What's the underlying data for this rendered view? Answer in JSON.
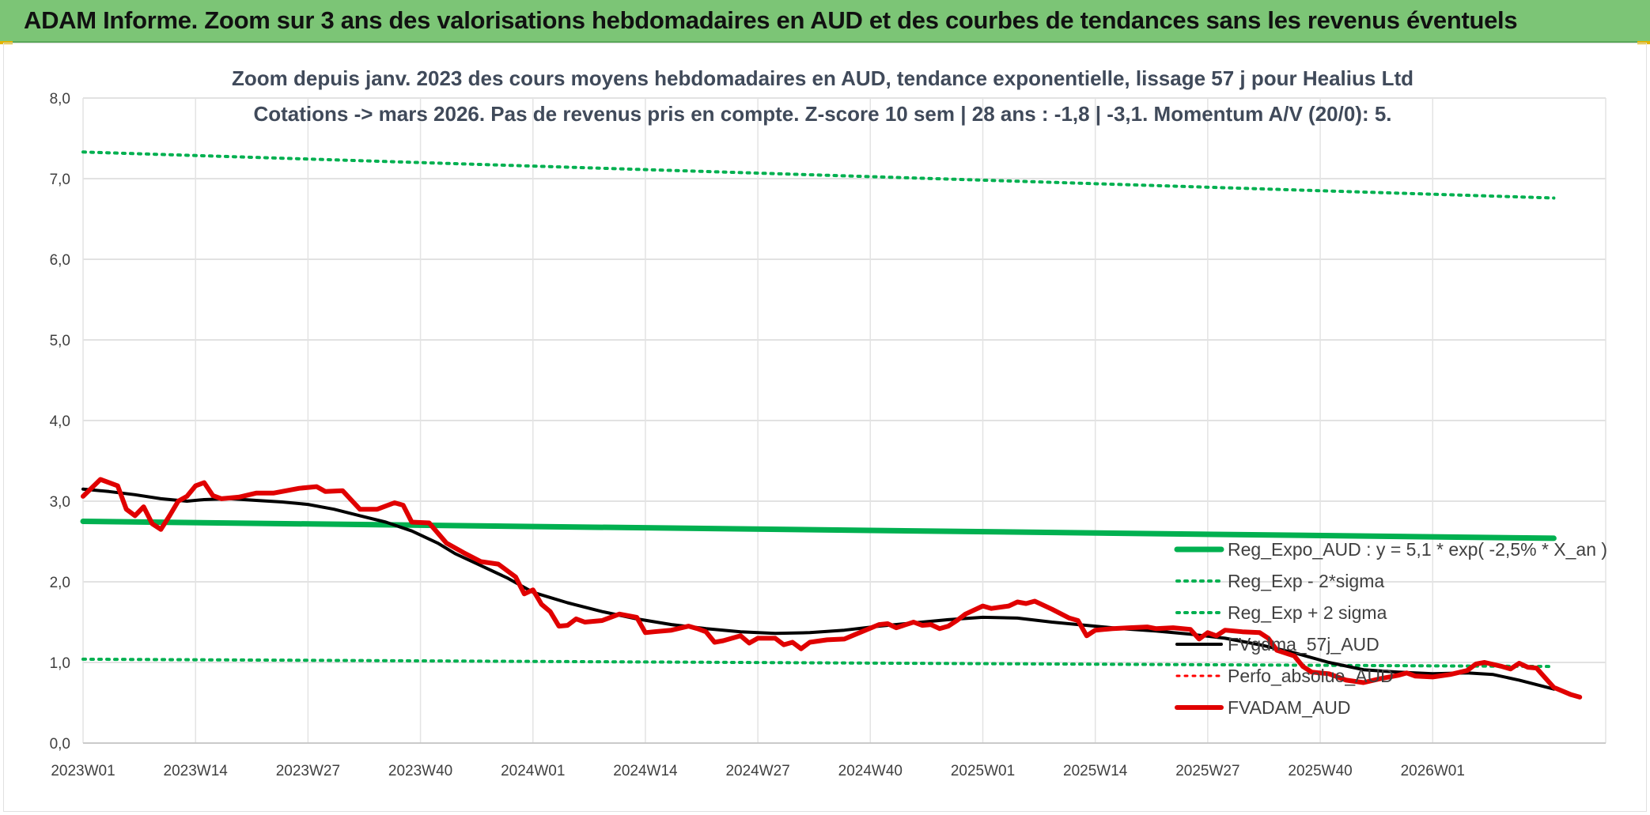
{
  "header": {
    "title": "ADAM Informe. Zoom sur 3 ans des valorisations hebdomadaires en AUD et des courbes de tendances sans les revenus éventuels"
  },
  "chart_data": {
    "type": "line",
    "title": "Zoom depuis janv. 2023 des cours moyens hebdomadaires en AUD, tendance exponentielle, lissage 57 j pour Healius Ltd",
    "subtitle": "Cotations -> mars 2026. Pas de revenus pris en compte. Z-score 10 sem | 28 ans : -1,8 | -3,1. Momentum A/V (20/0): 5.",
    "xlabel": "",
    "ylabel": "",
    "ylim": [
      0,
      8
    ],
    "yticks": [
      "0,0",
      "1,0",
      "2,0",
      "3,0",
      "4,0",
      "5,0",
      "6,0",
      "7,0",
      "8,0"
    ],
    "xticks": [
      "2023W01",
      "2023W14",
      "2023W27",
      "2023W40",
      "2024W01",
      "2024W14",
      "2024W27",
      "2024W40",
      "2025W01",
      "2025W14",
      "2025W27",
      "2025W40",
      "2026W01"
    ],
    "x_range_weeks": [
      0,
      170
    ],
    "grid": true,
    "legend_position": "bottom-right",
    "series": [
      {
        "name": "Reg_Expo_AUD : y = 5,1 * exp( -2,5% *  X_an )",
        "color": "#00b050",
        "style": "solid",
        "width": 7,
        "points": [
          [
            0,
            2.75
          ],
          [
            170,
            2.54
          ]
        ]
      },
      {
        "name": "Reg_Exp - 2*sigma",
        "color": "#00b050",
        "style": "dotted",
        "width": 4,
        "points": [
          [
            0,
            1.04
          ],
          [
            170,
            0.95
          ]
        ]
      },
      {
        "name": "Reg_Exp + 2 sigma",
        "color": "#00b050",
        "style": "dotted",
        "width": 4,
        "points": [
          [
            0,
            7.33
          ],
          [
            170,
            6.76
          ]
        ]
      },
      {
        "name": "FVgdma_57j_AUD",
        "color": "#000000",
        "style": "solid",
        "width": 4,
        "points": [
          [
            0,
            3.15
          ],
          [
            3,
            3.12
          ],
          [
            6,
            3.08
          ],
          [
            9,
            3.03
          ],
          [
            12,
            3.0
          ],
          [
            14,
            3.02
          ],
          [
            17,
            3.03
          ],
          [
            20,
            3.01
          ],
          [
            23,
            2.99
          ],
          [
            26,
            2.96
          ],
          [
            29,
            2.9
          ],
          [
            32,
            2.82
          ],
          [
            35,
            2.74
          ],
          [
            38,
            2.63
          ],
          [
            41,
            2.48
          ],
          [
            43,
            2.35
          ],
          [
            46,
            2.2
          ],
          [
            49,
            2.05
          ],
          [
            52,
            1.87
          ],
          [
            56,
            1.74
          ],
          [
            60,
            1.63
          ],
          [
            64,
            1.54
          ],
          [
            68,
            1.47
          ],
          [
            72,
            1.42
          ],
          [
            76,
            1.38
          ],
          [
            80,
            1.36
          ],
          [
            84,
            1.37
          ],
          [
            88,
            1.4
          ],
          [
            92,
            1.45
          ],
          [
            96,
            1.49
          ],
          [
            100,
            1.53
          ],
          [
            104,
            1.56
          ],
          [
            108,
            1.55
          ],
          [
            112,
            1.5
          ],
          [
            116,
            1.46
          ],
          [
            120,
            1.42
          ],
          [
            124,
            1.39
          ],
          [
            128,
            1.35
          ],
          [
            132,
            1.3
          ],
          [
            136,
            1.22
          ],
          [
            140,
            1.12
          ],
          [
            144,
            1.0
          ],
          [
            148,
            0.91
          ],
          [
            152,
            0.88
          ],
          [
            156,
            0.86
          ],
          [
            160,
            0.87
          ],
          [
            163,
            0.85
          ],
          [
            166,
            0.78
          ],
          [
            170,
            0.67
          ]
        ]
      },
      {
        "name": "Perfo_absolue_AUD",
        "color": "#ff0000",
        "style": "dotted",
        "width": 3,
        "points": []
      },
      {
        "name": "FVADAM_AUD",
        "color": "#e00000",
        "style": "solid",
        "width": 6,
        "points": [
          [
            0,
            3.06
          ],
          [
            2,
            3.27
          ],
          [
            4,
            3.19
          ],
          [
            5,
            2.9
          ],
          [
            6,
            2.82
          ],
          [
            7,
            2.93
          ],
          [
            8,
            2.72
          ],
          [
            9,
            2.65
          ],
          [
            10,
            2.82
          ],
          [
            11,
            3.0
          ],
          [
            12,
            3.06
          ],
          [
            13,
            3.19
          ],
          [
            14,
            3.23
          ],
          [
            15,
            3.07
          ],
          [
            16,
            3.03
          ],
          [
            18,
            3.05
          ],
          [
            20,
            3.1
          ],
          [
            22,
            3.1
          ],
          [
            25,
            3.16
          ],
          [
            27,
            3.18
          ],
          [
            28,
            3.12
          ],
          [
            30,
            3.13
          ],
          [
            32,
            2.9
          ],
          [
            34,
            2.9
          ],
          [
            36,
            2.98
          ],
          [
            37,
            2.95
          ],
          [
            38,
            2.74
          ],
          [
            40,
            2.73
          ],
          [
            42,
            2.48
          ],
          [
            44,
            2.36
          ],
          [
            46,
            2.25
          ],
          [
            48,
            2.22
          ],
          [
            50,
            2.06
          ],
          [
            51,
            1.85
          ],
          [
            52,
            1.9
          ],
          [
            53,
            1.72
          ],
          [
            54,
            1.63
          ],
          [
            55,
            1.45
          ],
          [
            56,
            1.46
          ],
          [
            57,
            1.54
          ],
          [
            58,
            1.5
          ],
          [
            60,
            1.52
          ],
          [
            62,
            1.6
          ],
          [
            64,
            1.56
          ],
          [
            65,
            1.37
          ],
          [
            66,
            1.38
          ],
          [
            68,
            1.4
          ],
          [
            70,
            1.45
          ],
          [
            71,
            1.42
          ],
          [
            72,
            1.38
          ],
          [
            73,
            1.25
          ],
          [
            74,
            1.27
          ],
          [
            76,
            1.33
          ],
          [
            77,
            1.24
          ],
          [
            78,
            1.3
          ],
          [
            80,
            1.3
          ],
          [
            81,
            1.22
          ],
          [
            82,
            1.25
          ],
          [
            83,
            1.17
          ],
          [
            84,
            1.25
          ],
          [
            86,
            1.28
          ],
          [
            88,
            1.29
          ],
          [
            90,
            1.38
          ],
          [
            92,
            1.47
          ],
          [
            93,
            1.48
          ],
          [
            94,
            1.43
          ],
          [
            96,
            1.5
          ],
          [
            97,
            1.46
          ],
          [
            98,
            1.47
          ],
          [
            99,
            1.42
          ],
          [
            100,
            1.45
          ],
          [
            101,
            1.52
          ],
          [
            102,
            1.6
          ],
          [
            104,
            1.7
          ],
          [
            105,
            1.67
          ],
          [
            107,
            1.7
          ],
          [
            108,
            1.75
          ],
          [
            109,
            1.73
          ],
          [
            110,
            1.76
          ],
          [
            112,
            1.66
          ],
          [
            114,
            1.55
          ],
          [
            115,
            1.52
          ],
          [
            116,
            1.33
          ],
          [
            117,
            1.4
          ],
          [
            119,
            1.42
          ],
          [
            121,
            1.43
          ],
          [
            123,
            1.44
          ],
          [
            124,
            1.42
          ],
          [
            126,
            1.43
          ],
          [
            128,
            1.41
          ],
          [
            129,
            1.29
          ],
          [
            130,
            1.37
          ],
          [
            131,
            1.33
          ],
          [
            132,
            1.4
          ],
          [
            134,
            1.38
          ],
          [
            136,
            1.37
          ],
          [
            137,
            1.3
          ],
          [
            138,
            1.15
          ],
          [
            140,
            1.08
          ],
          [
            141,
            0.95
          ],
          [
            142,
            0.88
          ],
          [
            143,
            0.87
          ],
          [
            144,
            0.86
          ],
          [
            146,
            0.78
          ],
          [
            148,
            0.75
          ],
          [
            150,
            0.8
          ],
          [
            152,
            0.84
          ],
          [
            153,
            0.87
          ],
          [
            154,
            0.83
          ],
          [
            156,
            0.82
          ],
          [
            158,
            0.85
          ],
          [
            160,
            0.9
          ],
          [
            161,
            0.98
          ],
          [
            162,
            1.0
          ],
          [
            164,
            0.95
          ],
          [
            165,
            0.92
          ],
          [
            166,
            0.99
          ],
          [
            167,
            0.94
          ],
          [
            168,
            0.93
          ],
          [
            169,
            0.81
          ],
          [
            170,
            0.69
          ],
          [
            172,
            0.6
          ],
          [
            173,
            0.57
          ]
        ]
      }
    ]
  }
}
